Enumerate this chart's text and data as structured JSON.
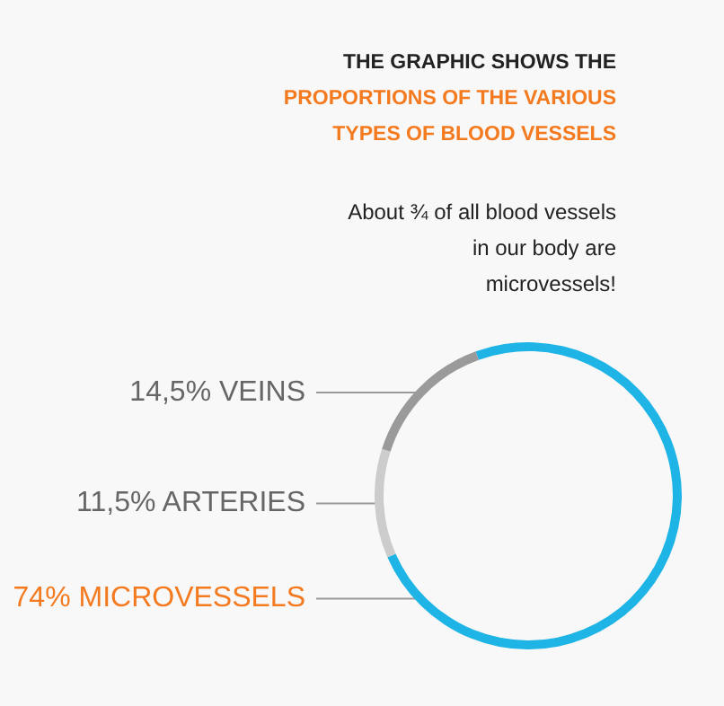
{
  "chart_data": {
    "type": "donut",
    "title": "THE GRAPHIC SHOWS THE",
    "subtitle": "PROPORTIONS OF THE VARIOUS TYPES OF BLOOD VESSELS",
    "annotations": [
      "About ¾ of all blood vessels in our body are microvessels!"
    ],
    "categories": [
      "MICROVESSELS",
      "ARTERIES",
      "VEINS"
    ],
    "values": [
      74,
      11.5,
      14.5
    ],
    "value_labels": [
      "74%",
      "11,5%",
      "14,5%"
    ],
    "colors": [
      "#1eb4e6",
      "#cccccc",
      "#9a9a9a"
    ]
  }
}
